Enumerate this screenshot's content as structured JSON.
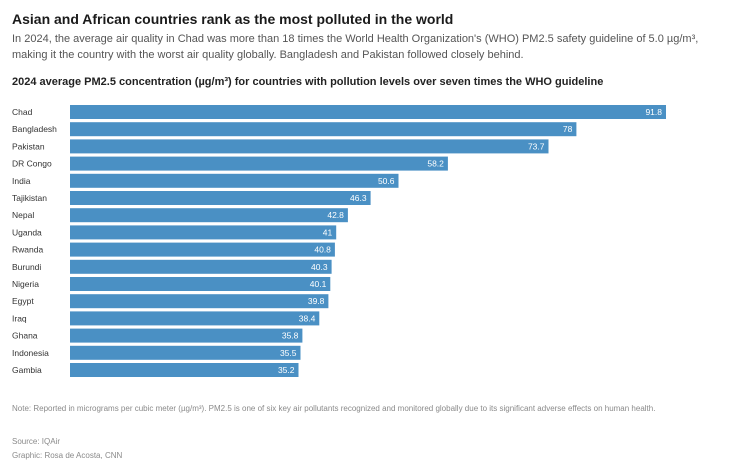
{
  "title": "Asian and African countries rank as the most polluted in the world",
  "subtitle": "In 2024, the average air quality in Chad was more than 18 times the World Health Organization's (WHO) PM2.5 safety guideline of 5.0 µg/m³, making it the country with the worst air quality globally. Bangladesh and Pakistan followed closely behind.",
  "note": "Note: Reported in micrograms per cubic meter (µg/m³). PM2.5 is one of six key air pollutants recognized and monitored globally due to its significant adverse effects on human health.",
  "source": "Source: IQAir",
  "credit": "Graphic: Rosa de Acosta, CNN",
  "colors": {
    "bar": "#4a90c4",
    "label_inside": "#ffffff"
  },
  "chart_data": {
    "type": "bar",
    "orientation": "horizontal",
    "title": "2024 average PM2.5 concentration (µg/m³) for countries with pollution levels over seven times the WHO guideline",
    "categories": [
      "Chad",
      "Bangladesh",
      "Pakistan",
      "DR Congo",
      "India",
      "Tajikistan",
      "Nepal",
      "Uganda",
      "Rwanda",
      "Burundi",
      "Nigeria",
      "Egypt",
      "Iraq",
      "Ghana",
      "Indonesia",
      "Gambia"
    ],
    "values": [
      91.8,
      78,
      73.7,
      58.2,
      50.6,
      46.3,
      42.8,
      41,
      40.8,
      40.3,
      40.1,
      39.8,
      38.4,
      35.8,
      35.5,
      35.2
    ],
    "value_labels": [
      "91.8",
      "78",
      "73.7",
      "58.2",
      "50.6",
      "46.3",
      "42.8",
      "41",
      "40.8",
      "40.3",
      "40.1",
      "39.8",
      "38.4",
      "35.8",
      "35.5",
      "35.2"
    ],
    "xlim": [
      0,
      91.8
    ],
    "grid": false,
    "legend": "none"
  }
}
